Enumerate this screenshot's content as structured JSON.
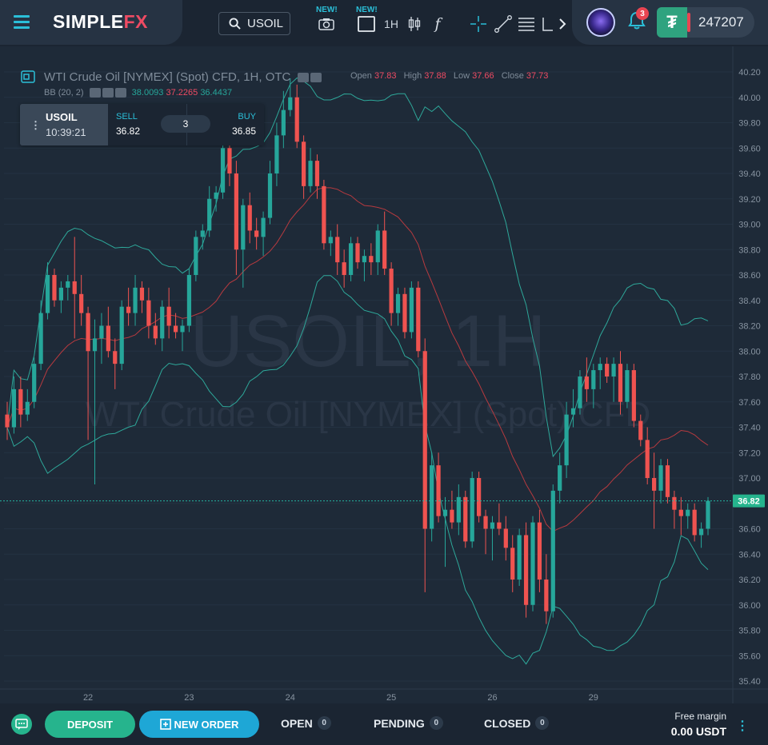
{
  "app": {
    "logo_main": "SIMPLE",
    "logo_accent": "FX"
  },
  "toolbar": {
    "symbol": "USOIL",
    "new_tag_1": "NEW!",
    "new_tag_2": "NEW!",
    "timeframe": "1H",
    "formula": "f"
  },
  "account": {
    "notifications": "3",
    "currency_icon": "₮",
    "balance": "247207"
  },
  "chart": {
    "title": "WTI Crude Oil [NYMEX] (Spot) CFD, 1H, OTC",
    "ohlc": {
      "open_label": "Open",
      "open": "37.83",
      "high_label": "High",
      "high": "37.88",
      "low_label": "Low",
      "low": "37.66",
      "close_label": "Close",
      "close": "37.73"
    },
    "indicator": {
      "name": "BB (20, 2)",
      "upper": "38.0093",
      "middle": "37.2265",
      "lower": "36.4437"
    },
    "watermark_line1": "USOIL, 1H",
    "watermark_line2": "WTI Crude Oil [NYMEX] (Spot) CFD",
    "current_price_label": "36.82",
    "y_ticks": [
      "40.20",
      "40.00",
      "39.80",
      "39.60",
      "39.40",
      "39.20",
      "39.00",
      "38.80",
      "38.60",
      "38.40",
      "38.20",
      "38.00",
      "37.80",
      "37.60",
      "37.40",
      "37.20",
      "37.00",
      "36.80",
      "36.60",
      "36.40",
      "36.20",
      "36.00",
      "35.80",
      "35.60",
      "35.40"
    ],
    "x_ticks": [
      "22",
      "23",
      "24",
      "25",
      "26",
      "29"
    ],
    "colors": {
      "up": "#26a69a",
      "down": "#ef5350",
      "band": "#2ea89a",
      "middle": "#b73a3f",
      "price_line": "#26b4a0"
    }
  },
  "trade_panel": {
    "symbol": "USOIL",
    "time": "10:39:21",
    "sell_label": "SELL",
    "sell_price": "36.82",
    "quantity": "3",
    "buy_label": "BUY",
    "buy_price": "36.85"
  },
  "bottom": {
    "deposit": "DEPOSIT",
    "new_order": "NEW ORDER",
    "tabs": [
      {
        "label": "OPEN",
        "count": "0"
      },
      {
        "label": "PENDING",
        "count": "0"
      },
      {
        "label": "CLOSED",
        "count": "0"
      }
    ],
    "free_margin_label": "Free margin",
    "free_margin_value": "0.00 USDT"
  },
  "chart_data": {
    "type": "candlestick",
    "symbol": "USOIL",
    "timeframe": "1H",
    "ylim": [
      35.4,
      40.2
    ],
    "x_labels": [
      "22",
      "23",
      "24",
      "25",
      "26",
      "29"
    ],
    "current_price": 36.82,
    "bollinger": {
      "period": 20,
      "mult": 2,
      "upper_last": 38.0093,
      "middle_last": 37.2265,
      "lower_last": 36.4437
    },
    "candles": [
      [
        37.5,
        37.6,
        37.3,
        37.4
      ],
      [
        37.4,
        37.8,
        37.35,
        37.7
      ],
      [
        37.7,
        37.8,
        37.4,
        37.5
      ],
      [
        37.5,
        37.7,
        37.45,
        37.6
      ],
      [
        37.6,
        37.95,
        37.55,
        37.9
      ],
      [
        37.9,
        38.4,
        37.85,
        38.3
      ],
      [
        38.3,
        38.7,
        38.25,
        38.6
      ],
      [
        38.6,
        38.65,
        38.35,
        38.4
      ],
      [
        38.4,
        38.55,
        38.3,
        38.5
      ],
      [
        38.5,
        38.6,
        38.4,
        38.55
      ],
      [
        38.55,
        38.9,
        38.1,
        38.45
      ],
      [
        38.45,
        38.6,
        38.2,
        38.3
      ],
      [
        38.3,
        38.35,
        37.3,
        38.0
      ],
      [
        38.0,
        38.25,
        36.95,
        38.1
      ],
      [
        38.1,
        38.3,
        37.9,
        38.2
      ],
      [
        38.2,
        38.35,
        37.95,
        38.0
      ],
      [
        38.0,
        38.1,
        37.7,
        37.9
      ],
      [
        37.9,
        38.4,
        37.85,
        38.35
      ],
      [
        38.35,
        38.5,
        38.2,
        38.3
      ],
      [
        38.3,
        38.6,
        38.2,
        38.5
      ],
      [
        38.5,
        38.55,
        38.3,
        38.4
      ],
      [
        38.4,
        38.5,
        38.1,
        38.2
      ],
      [
        38.2,
        38.3,
        38.05,
        38.1
      ],
      [
        38.1,
        38.4,
        38.0,
        38.35
      ],
      [
        38.35,
        38.5,
        38.1,
        38.2
      ],
      [
        38.2,
        38.3,
        38.1,
        38.15
      ],
      [
        38.15,
        38.25,
        38.0,
        38.2
      ],
      [
        38.2,
        38.65,
        38.15,
        38.6
      ],
      [
        38.6,
        38.95,
        38.55,
        38.9
      ],
      [
        38.9,
        39.0,
        38.8,
        38.95
      ],
      [
        38.95,
        39.3,
        38.9,
        39.2
      ],
      [
        39.2,
        39.3,
        39.1,
        39.25
      ],
      [
        39.25,
        39.7,
        39.2,
        39.6
      ],
      [
        39.6,
        39.8,
        39.3,
        39.4
      ],
      [
        39.4,
        39.5,
        38.6,
        38.8
      ],
      [
        38.8,
        39.2,
        38.5,
        39.15
      ],
      [
        39.15,
        39.25,
        38.85,
        38.95
      ],
      [
        38.95,
        39.05,
        38.8,
        38.9
      ],
      [
        38.9,
        39.1,
        38.75,
        39.05
      ],
      [
        39.05,
        39.5,
        39.0,
        39.4
      ],
      [
        39.4,
        39.8,
        39.3,
        39.7
      ],
      [
        39.7,
        40.05,
        39.6,
        39.9
      ],
      [
        39.9,
        40.15,
        39.85,
        40.0
      ],
      [
        40.0,
        40.1,
        39.6,
        39.65
      ],
      [
        39.65,
        39.7,
        39.2,
        39.3
      ],
      [
        39.3,
        39.6,
        39.25,
        39.5
      ],
      [
        39.5,
        39.55,
        39.2,
        39.3
      ],
      [
        39.3,
        39.35,
        38.8,
        38.85
      ],
      [
        38.85,
        38.95,
        38.75,
        38.9
      ],
      [
        38.9,
        39.0,
        38.6,
        38.7
      ],
      [
        38.7,
        38.8,
        38.5,
        38.6
      ],
      [
        38.6,
        38.9,
        38.55,
        38.85
      ],
      [
        38.85,
        38.9,
        38.65,
        38.7
      ],
      [
        38.7,
        38.8,
        38.55,
        38.75
      ],
      [
        38.75,
        38.85,
        38.6,
        38.7
      ],
      [
        38.7,
        39.0,
        38.6,
        38.95
      ],
      [
        38.95,
        39.1,
        38.6,
        38.65
      ],
      [
        38.65,
        38.7,
        38.2,
        38.3
      ],
      [
        38.3,
        38.5,
        38.2,
        38.45
      ],
      [
        38.45,
        38.5,
        38.1,
        38.15
      ],
      [
        38.15,
        38.55,
        38.1,
        38.5
      ],
      [
        38.5,
        38.55,
        37.95,
        38.0
      ],
      [
        38.0,
        38.1,
        36.1,
        36.6
      ],
      [
        36.6,
        37.2,
        36.5,
        37.1
      ],
      [
        37.1,
        37.2,
        36.65,
        36.7
      ],
      [
        36.7,
        36.85,
        36.3,
        36.75
      ],
      [
        36.75,
        36.9,
        36.6,
        36.65
      ],
      [
        36.65,
        36.95,
        36.55,
        36.85
      ],
      [
        36.85,
        36.9,
        36.45,
        36.5
      ],
      [
        36.5,
        37.05,
        36.45,
        37.0
      ],
      [
        37.0,
        37.05,
        36.65,
        36.7
      ],
      [
        36.7,
        36.75,
        36.4,
        36.6
      ],
      [
        36.6,
        36.7,
        36.35,
        36.65
      ],
      [
        36.65,
        36.8,
        36.55,
        36.6
      ],
      [
        36.6,
        36.7,
        36.35,
        36.45
      ],
      [
        36.45,
        36.55,
        36.1,
        36.2
      ],
      [
        36.2,
        36.6,
        36.15,
        36.55
      ],
      [
        36.55,
        36.65,
        35.9,
        36.0
      ],
      [
        36.0,
        36.7,
        35.95,
        36.65
      ],
      [
        36.65,
        36.75,
        36.1,
        36.2
      ],
      [
        36.2,
        36.4,
        35.85,
        35.95
      ],
      [
        35.95,
        36.95,
        35.9,
        36.9
      ],
      [
        36.9,
        37.2,
        36.8,
        37.1
      ],
      [
        37.1,
        37.6,
        37.0,
        37.5
      ],
      [
        37.5,
        37.7,
        37.4,
        37.55
      ],
      [
        37.55,
        37.85,
        37.5,
        37.8
      ],
      [
        37.8,
        37.95,
        37.6,
        37.7
      ],
      [
        37.7,
        37.9,
        37.55,
        37.85
      ],
      [
        37.85,
        37.95,
        37.7,
        37.9
      ],
      [
        37.9,
        37.95,
        37.75,
        37.8
      ],
      [
        37.8,
        37.95,
        37.6,
        37.9
      ],
      [
        37.9,
        38.0,
        37.5,
        37.6
      ],
      [
        37.6,
        37.9,
        37.55,
        37.85
      ],
      [
        37.85,
        37.9,
        37.4,
        37.45
      ],
      [
        37.45,
        37.5,
        37.25,
        37.3
      ],
      [
        37.3,
        37.4,
        36.95,
        37.0
      ],
      [
        37.0,
        37.2,
        36.6,
        36.9
      ],
      [
        36.9,
        37.15,
        36.8,
        37.1
      ],
      [
        37.1,
        37.15,
        36.8,
        36.85
      ],
      [
        36.85,
        36.9,
        36.6,
        36.75
      ],
      [
        36.75,
        36.85,
        36.55,
        36.7
      ],
      [
        36.7,
        36.8,
        36.6,
        36.75
      ],
      [
        36.75,
        36.8,
        36.5,
        36.55
      ],
      [
        36.55,
        36.65,
        36.45,
        36.6
      ],
      [
        36.6,
        36.85,
        36.55,
        36.82
      ]
    ]
  }
}
